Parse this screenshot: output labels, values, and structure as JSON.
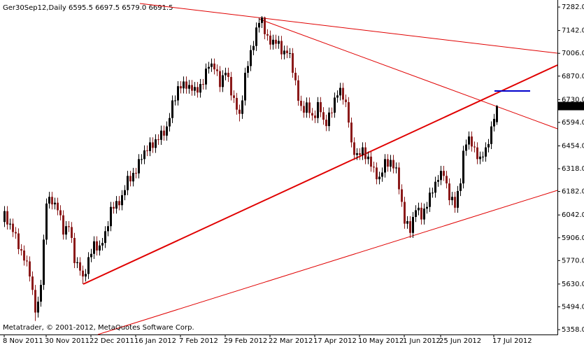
{
  "chart_data": {
    "type": "candlestick",
    "title": "Ger30Sep12,Daily  6595.5 6697.5 6579.0 6691.5",
    "footer": "Metatrader, © 2001-2012, MetaQuotes Software Corp.",
    "categories": [
      "8 Nov 2011",
      null,
      null,
      null,
      null,
      null,
      null,
      null,
      null,
      null,
      null,
      null,
      null,
      null,
      null,
      "30 Nov 2011",
      null,
      null,
      null,
      null,
      null,
      null,
      null,
      null,
      null,
      null,
      null,
      null,
      null,
      null,
      null,
      "22 Dec 2011",
      null,
      null,
      null,
      null,
      null,
      null,
      null,
      null,
      null,
      null,
      null,
      null,
      null,
      null,
      null,
      "16 Jan 2012",
      null,
      null,
      null,
      null,
      null,
      null,
      null,
      null,
      null,
      null,
      null,
      null,
      null,
      null,
      null,
      "7 Feb 2012",
      null,
      null,
      null,
      null,
      null,
      null,
      null,
      null,
      null,
      null,
      null,
      null,
      null,
      null,
      null,
      "29 Feb 2012",
      null,
      null,
      null,
      null,
      null,
      null,
      null,
      null,
      null,
      null,
      null,
      null,
      null,
      null,
      null,
      "22 Mar 2012",
      null,
      null,
      null,
      null,
      null,
      null,
      null,
      null,
      null,
      null,
      null,
      null,
      null,
      null,
      null,
      "17 Apr 2012",
      null,
      null,
      null,
      null,
      null,
      null,
      null,
      null,
      null,
      null,
      null,
      null,
      null,
      null,
      null,
      "10 May 2012",
      null,
      null,
      null,
      null,
      null,
      null,
      null,
      null,
      null,
      null,
      null,
      null,
      null,
      null,
      null,
      "1 Jun 2012",
      null,
      null,
      null,
      null,
      null,
      null,
      null,
      null,
      null,
      null,
      null,
      null,
      "25 Jun 2012",
      null,
      null,
      null,
      null,
      null,
      null,
      null,
      null,
      null,
      null,
      null,
      null,
      null,
      null,
      null,
      null,
      null,
      null,
      "17 Jul 2012",
      null
    ],
    "ohlc": [
      [
        6000,
        6095,
        5970,
        6065
      ],
      [
        6065,
        6095,
        5955,
        5985
      ],
      [
        5985,
        6020,
        5955,
        5990
      ],
      [
        5990,
        6020,
        5910,
        5940
      ],
      [
        5940,
        5970,
        5900,
        5932
      ],
      [
        5932,
        5962,
        5808,
        5838
      ],
      [
        5838,
        5868,
        5800,
        5830
      ],
      [
        5830,
        5860,
        5740,
        5770
      ],
      [
        5770,
        5800,
        5735,
        5765
      ],
      [
        5765,
        5795,
        5645,
        5675
      ],
      [
        5675,
        5705,
        5565,
        5595
      ],
      [
        5595,
        5625,
        5410,
        5460
      ],
      [
        5460,
        5555,
        5430,
        5525
      ],
      [
        5525,
        5655,
        5495,
        5625
      ],
      [
        5625,
        5925,
        5595,
        5895
      ],
      [
        5895,
        6140,
        5865,
        6110
      ],
      [
        6110,
        6180,
        6080,
        6150
      ],
      [
        6150,
        6180,
        6075,
        6105
      ],
      [
        6105,
        6145,
        6075,
        6115
      ],
      [
        6115,
        6145,
        6040,
        6070
      ],
      [
        6070,
        6100,
        6010,
        6040
      ],
      [
        6040,
        6070,
        5895,
        5925
      ],
      [
        5925,
        6005,
        5895,
        5975
      ],
      [
        5975,
        6005,
        5940,
        5970
      ],
      [
        5970,
        6000,
        5875,
        5905
      ],
      [
        5905,
        5935,
        5725,
        5755
      ],
      [
        5755,
        5790,
        5725,
        5760
      ],
      [
        5760,
        5790,
        5680,
        5710
      ],
      [
        5710,
        5740,
        5630,
        5675
      ],
      [
        5675,
        5720,
        5645,
        5690
      ],
      [
        5690,
        5820,
        5660,
        5790
      ],
      [
        5790,
        5840,
        5760,
        5810
      ],
      [
        5810,
        5915,
        5780,
        5885
      ],
      [
        5885,
        5915,
        5800,
        5830
      ],
      [
        5830,
        5890,
        5800,
        5860
      ],
      [
        5860,
        5905,
        5830,
        5875
      ],
      [
        5875,
        5975,
        5845,
        5945
      ],
      [
        5945,
        6005,
        5915,
        5975
      ],
      [
        5975,
        6120,
        5945,
        6090
      ],
      [
        6090,
        6120,
        6050,
        6080
      ],
      [
        6080,
        6155,
        6050,
        6125
      ],
      [
        6125,
        6155,
        6070,
        6100
      ],
      [
        6100,
        6190,
        6070,
        6160
      ],
      [
        6160,
        6220,
        6130,
        6190
      ],
      [
        6190,
        6305,
        6160,
        6275
      ],
      [
        6275,
        6305,
        6212,
        6242
      ],
      [
        6242,
        6323,
        6212,
        6293
      ],
      [
        6293,
        6323,
        6260,
        6290
      ],
      [
        6290,
        6405,
        6260,
        6375
      ],
      [
        6375,
        6405,
        6345,
        6375
      ],
      [
        6375,
        6457,
        6345,
        6427
      ],
      [
        6427,
        6457,
        6393,
        6423
      ],
      [
        6423,
        6505,
        6393,
        6475
      ],
      [
        6475,
        6505,
        6412,
        6442
      ],
      [
        6442,
        6523,
        6412,
        6493
      ],
      [
        6493,
        6523,
        6460,
        6490
      ],
      [
        6490,
        6575,
        6460,
        6545
      ],
      [
        6545,
        6575,
        6485,
        6515
      ],
      [
        6515,
        6600,
        6485,
        6570
      ],
      [
        6570,
        6650,
        6540,
        6620
      ],
      [
        6620,
        6755,
        6590,
        6725
      ],
      [
        6725,
        6755,
        6695,
        6725
      ],
      [
        6725,
        6840,
        6695,
        6810
      ],
      [
        6810,
        6840,
        6767,
        6797
      ],
      [
        6797,
        6868,
        6767,
        6838
      ],
      [
        6838,
        6868,
        6765,
        6795
      ],
      [
        6795,
        6847,
        6765,
        6817
      ],
      [
        6817,
        6847,
        6753,
        6783
      ],
      [
        6783,
        6835,
        6753,
        6805
      ],
      [
        6805,
        6835,
        6742,
        6772
      ],
      [
        6772,
        6853,
        6742,
        6823
      ],
      [
        6823,
        6853,
        6790,
        6820
      ],
      [
        6820,
        6945,
        6790,
        6915
      ],
      [
        6915,
        6955,
        6885,
        6925
      ],
      [
        6925,
        6975,
        6895,
        6945
      ],
      [
        6945,
        6975,
        6880,
        6910
      ],
      [
        6910,
        6940,
        6870,
        6900
      ],
      [
        6900,
        6930,
        6775,
        6805
      ],
      [
        6805,
        6905,
        6775,
        6875
      ],
      [
        6875,
        6920,
        6845,
        6890
      ],
      [
        6890,
        6920,
        6835,
        6865
      ],
      [
        6865,
        6895,
        6725,
        6755
      ],
      [
        6755,
        6785,
        6710,
        6740
      ],
      [
        6740,
        6770,
        6640,
        6670
      ],
      [
        6670,
        6700,
        6600,
        6645
      ],
      [
        6645,
        6755,
        6615,
        6725
      ],
      [
        6725,
        6920,
        6695,
        6890
      ],
      [
        6890,
        6960,
        6860,
        6930
      ],
      [
        6930,
        7055,
        6900,
        7025
      ],
      [
        7025,
        7080,
        6995,
        7050
      ],
      [
        7050,
        7190,
        7020,
        7160
      ],
      [
        7160,
        7217,
        7130,
        7187
      ],
      [
        7187,
        7228,
        7157,
        7220
      ],
      [
        7220,
        7225,
        7090,
        7120
      ],
      [
        7120,
        7150,
        7082,
        7112
      ],
      [
        7112,
        7142,
        7028,
        7058
      ],
      [
        7058,
        7117,
        7028,
        7087
      ],
      [
        7087,
        7117,
        7033,
        7063
      ],
      [
        7063,
        7110,
        7033,
        7080
      ],
      [
        7080,
        7110,
        6970,
        7000
      ],
      [
        7000,
        7052,
        6970,
        7022
      ],
      [
        7022,
        7052,
        6977,
        7007
      ],
      [
        7007,
        7037,
        6977,
        7007
      ],
      [
        7007,
        7037,
        6860,
        6890
      ],
      [
        6890,
        6920,
        6815,
        6845
      ],
      [
        6845,
        6875,
        6693,
        6723
      ],
      [
        6723,
        6753,
        6662,
        6692
      ],
      [
        6692,
        6722,
        6622,
        6652
      ],
      [
        6652,
        6743,
        6622,
        6713
      ],
      [
        6713,
        6743,
        6620,
        6650
      ],
      [
        6650,
        6680,
        6605,
        6635
      ],
      [
        6635,
        6665,
        6590,
        6620
      ],
      [
        6620,
        6745,
        6590,
        6715
      ],
      [
        6715,
        6745,
        6625,
        6655
      ],
      [
        6655,
        6685,
        6580,
        6610
      ],
      [
        6610,
        6640,
        6542,
        6572
      ],
      [
        6572,
        6683,
        6542,
        6653
      ],
      [
        6653,
        6683,
        6622,
        6652
      ],
      [
        6652,
        6772,
        6622,
        6742
      ],
      [
        6742,
        6785,
        6712,
        6755
      ],
      [
        6755,
        6830,
        6725,
        6800
      ],
      [
        6800,
        6830,
        6700,
        6730
      ],
      [
        6730,
        6760,
        6685,
        6715
      ],
      [
        6715,
        6745,
        6563,
        6593
      ],
      [
        6593,
        6623,
        6445,
        6475
      ],
      [
        6475,
        6505,
        6370,
        6400
      ],
      [
        6400,
        6440,
        6370,
        6410
      ],
      [
        6410,
        6440,
        6370,
        6400
      ],
      [
        6400,
        6475,
        6370,
        6445
      ],
      [
        6445,
        6475,
        6345,
        6375
      ],
      [
        6375,
        6420,
        6345,
        6390
      ],
      [
        6390,
        6420,
        6300,
        6330
      ],
      [
        6330,
        6360,
        6295,
        6325
      ],
      [
        6325,
        6355,
        6225,
        6255
      ],
      [
        6255,
        6300,
        6225,
        6270
      ],
      [
        6270,
        6325,
        6240,
        6295
      ],
      [
        6295,
        6405,
        6265,
        6375
      ],
      [
        6375,
        6405,
        6300,
        6330
      ],
      [
        6330,
        6400,
        6300,
        6370
      ],
      [
        6370,
        6400,
        6290,
        6320
      ],
      [
        6320,
        6355,
        6290,
        6325
      ],
      [
        6325,
        6355,
        6165,
        6195
      ],
      [
        6195,
        6225,
        6090,
        6120
      ],
      [
        6120,
        6150,
        5960,
        5990
      ],
      [
        5990,
        6035,
        5960,
        6005
      ],
      [
        6005,
        6035,
        5905,
        5935
      ],
      [
        5935,
        6060,
        5905,
        6030
      ],
      [
        6030,
        6100,
        6000,
        6070
      ],
      [
        6070,
        6115,
        6040,
        6085
      ],
      [
        6085,
        6115,
        5985,
        6015
      ],
      [
        6015,
        6110,
        5985,
        6080
      ],
      [
        6080,
        6120,
        6050,
        6090
      ],
      [
        6090,
        6205,
        6060,
        6175
      ],
      [
        6175,
        6205,
        6145,
        6175
      ],
      [
        6175,
        6270,
        6145,
        6240
      ],
      [
        6240,
        6280,
        6210,
        6250
      ],
      [
        6250,
        6335,
        6220,
        6305
      ],
      [
        6305,
        6335,
        6245,
        6275
      ],
      [
        6275,
        6305,
        6200,
        6230
      ],
      [
        6230,
        6260,
        6100,
        6130
      ],
      [
        6130,
        6180,
        6100,
        6150
      ],
      [
        6150,
        6180,
        6055,
        6085
      ],
      [
        6085,
        6215,
        6055,
        6185
      ],
      [
        6185,
        6260,
        6155,
        6230
      ],
      [
        6230,
        6455,
        6200,
        6425
      ],
      [
        6425,
        6492,
        6395,
        6462
      ],
      [
        6462,
        6540,
        6432,
        6510
      ],
      [
        6510,
        6540,
        6420,
        6450
      ],
      [
        6450,
        6480,
        6415,
        6445
      ],
      [
        6445,
        6475,
        6345,
        6375
      ],
      [
        6375,
        6420,
        6345,
        6390
      ],
      [
        6390,
        6420,
        6360,
        6390
      ],
      [
        6390,
        6475,
        6360,
        6445
      ],
      [
        6445,
        6495,
        6415,
        6465
      ],
      [
        6465,
        6600,
        6435,
        6570
      ],
      [
        6570,
        6645,
        6540,
        6615
      ],
      [
        6595.5,
        6697.5,
        6579,
        6691.5
      ]
    ],
    "up_color": "#000000",
    "down_color": "#8b1a1a",
    "ylim": [
      5329,
      7324
    ],
    "yticks": [
      {
        "value": 7282,
        "label": "7282.0"
      },
      {
        "value": 7142,
        "label": "7142.0"
      },
      {
        "value": 7006,
        "label": "7006.0"
      },
      {
        "value": 6870,
        "label": "6870.0"
      },
      {
        "value": 6730,
        "label": "6730.0"
      },
      {
        "value": 6594,
        "label": "6594.0"
      },
      {
        "value": 6454,
        "label": "6454.0"
      },
      {
        "value": 6318,
        "label": "6318.0"
      },
      {
        "value": 6182,
        "label": "6182.0"
      },
      {
        "value": 6042,
        "label": "6042.0"
      },
      {
        "value": 5906,
        "label": "5906.0"
      },
      {
        "value": 5770,
        "label": "5770.0"
      },
      {
        "value": 5630,
        "label": "5630.0"
      },
      {
        "value": 5494,
        "label": "5494.0"
      },
      {
        "value": 5358,
        "label": "5358.0"
      }
    ],
    "current_price": 6691.5,
    "grid": false
  }
}
